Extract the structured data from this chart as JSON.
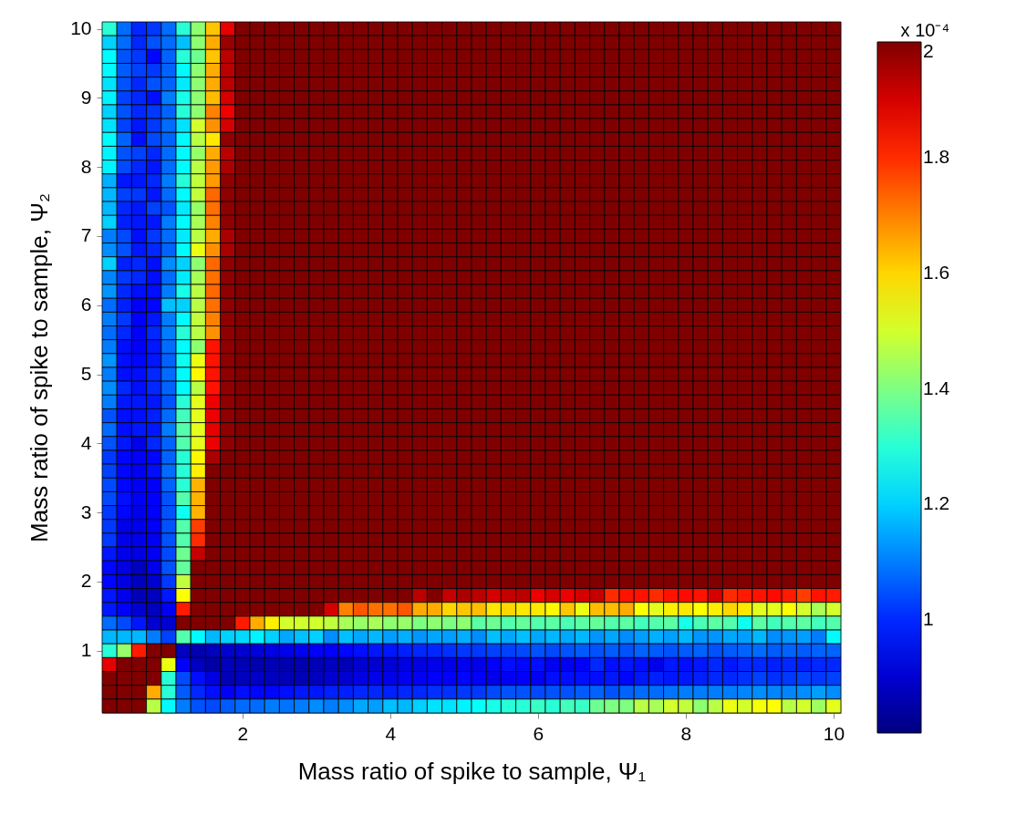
{
  "chart_data": {
    "type": "heatmap",
    "xlabel": "Mass ratio of spike to sample, Ψ₁",
    "ylabel": "Mass ratio of spike to sample, Ψ₂",
    "clabel": "x 10⁻⁴",
    "x": [
      0.2,
      0.4,
      0.6,
      0.8,
      1.0,
      1.2,
      1.4,
      1.6,
      1.8,
      2.0,
      2.2,
      2.4,
      2.6,
      2.8,
      3.0,
      3.2,
      3.4,
      3.6,
      3.8,
      4.0,
      4.2,
      4.4,
      4.6,
      4.8,
      5.0,
      5.2,
      5.4,
      5.6,
      5.8,
      6.0,
      6.2,
      6.4,
      6.6,
      6.8,
      7.0,
      7.2,
      7.4,
      7.6,
      7.8,
      8.0,
      8.2,
      8.4,
      8.6,
      8.8,
      9.0,
      9.2,
      9.4,
      9.6,
      9.8,
      10.0
    ],
    "y": [
      10.0,
      9.8,
      9.6,
      9.4,
      9.2,
      9.0,
      8.8,
      8.6,
      8.4,
      8.2,
      8.0,
      7.8,
      7.6,
      7.4,
      7.2,
      7.0,
      6.8,
      6.6,
      6.4,
      6.2,
      6.0,
      5.8,
      5.6,
      5.4,
      5.2,
      5.0,
      4.8,
      4.6,
      4.4,
      4.2,
      4.0,
      3.8,
      3.6,
      3.4,
      3.2,
      3.0,
      2.8,
      2.6,
      2.4,
      2.2,
      2.0,
      1.8,
      1.6,
      1.4,
      1.2,
      1.0,
      0.8,
      0.6,
      0.4,
      0.2
    ],
    "xlim": [
      0.1,
      10.1
    ],
    "xticks": [
      2,
      4,
      6,
      8,
      10
    ],
    "ylim": [
      0.1,
      10.1
    ],
    "yticks": [
      1,
      2,
      3,
      4,
      5,
      6,
      7,
      8,
      9,
      10
    ],
    "clim": [
      0.805,
      2
    ],
    "cticks": [
      1,
      1.2,
      1.4,
      1.6,
      1.8,
      2
    ],
    "cells": [
      [
        1.3,
        1.08,
        1,
        1.02,
        1.08,
        1.3,
        1.42,
        1.62,
        1.88,
        2,
        2,
        2,
        2,
        2,
        2,
        2,
        2,
        2,
        2,
        2,
        2,
        2,
        2,
        2,
        2,
        2,
        2,
        2,
        2,
        2,
        2,
        2,
        2,
        2,
        2,
        2,
        2,
        2,
        2,
        2,
        2,
        2,
        2,
        2,
        2,
        2,
        2,
        2,
        2,
        2
      ],
      [
        1.2,
        1.08,
        1,
        1.05,
        1.08,
        1.18,
        1.42,
        1.65,
        1.97,
        2,
        2,
        2,
        2,
        2,
        2,
        2,
        2,
        2,
        2,
        2,
        2,
        2,
        2,
        2,
        2,
        2,
        2,
        2,
        2,
        2,
        2,
        2,
        2,
        2,
        2,
        2,
        2,
        2,
        2,
        2,
        2,
        2,
        2,
        2,
        2,
        2,
        2,
        2,
        2,
        2
      ],
      [
        1.25,
        1.05,
        1.02,
        0.96,
        1.07,
        1.3,
        1.38,
        1.62,
        1.93,
        2,
        2,
        2,
        2,
        2,
        2,
        2,
        2,
        2,
        2,
        2,
        2,
        2,
        2,
        2,
        2,
        2,
        2,
        2,
        2,
        2,
        2,
        2,
        2,
        2,
        2,
        2,
        2,
        2,
        2,
        2,
        2,
        2,
        2,
        2,
        2,
        2,
        2,
        2,
        2,
        2
      ],
      [
        1.25,
        1.06,
        1.03,
        1.02,
        1.07,
        1.25,
        1.42,
        1.65,
        1.93,
        2,
        2,
        2,
        2,
        2,
        2,
        2,
        2,
        2,
        2,
        2,
        2,
        2,
        2,
        2,
        2,
        2,
        2,
        2,
        2,
        2,
        2,
        2,
        2,
        2,
        2,
        2,
        2,
        2,
        2,
        2,
        2,
        2,
        2,
        2,
        2,
        2,
        2,
        2,
        2,
        2
      ],
      [
        1.22,
        1.05,
        1,
        1.05,
        1.07,
        1.23,
        1.42,
        1.65,
        1.93,
        2,
        2,
        2,
        2,
        2,
        2,
        2,
        2,
        2,
        2,
        2,
        2,
        2,
        2,
        2,
        2,
        2,
        2,
        2,
        2,
        2,
        2,
        2,
        2,
        2,
        2,
        2,
        2,
        2,
        2,
        2,
        2,
        2,
        2,
        2,
        2,
        2,
        2,
        2,
        2,
        2
      ],
      [
        1.24,
        1.03,
        1,
        0.97,
        1.1,
        1.28,
        1.42,
        1.63,
        1.9,
        2,
        2,
        2,
        2,
        2,
        2,
        2,
        2,
        2,
        2,
        2,
        2,
        2,
        2,
        2,
        2,
        2,
        2,
        2,
        2,
        2,
        2,
        2,
        2,
        2,
        2,
        2,
        2,
        2,
        2,
        2,
        2,
        2,
        2,
        2,
        2,
        2,
        2,
        2,
        2,
        2
      ],
      [
        1.2,
        1.05,
        1,
        1.02,
        1.07,
        1.3,
        1.42,
        1.7,
        1.87,
        2,
        2,
        2,
        2,
        2,
        2,
        2,
        2,
        2,
        2,
        2,
        2,
        2,
        2,
        2,
        2,
        2,
        2,
        2,
        2,
        2,
        2,
        2,
        2,
        2,
        2,
        2,
        2,
        2,
        2,
        2,
        2,
        2,
        2,
        2,
        2,
        2,
        2,
        2,
        2,
        2
      ],
      [
        1.22,
        1.03,
        0.98,
        1.02,
        1.08,
        1.22,
        1.5,
        1.68,
        1.9,
        2,
        2,
        2,
        2,
        2,
        2,
        2,
        2,
        2,
        2,
        2,
        2,
        2,
        2,
        2,
        2,
        2,
        2,
        2,
        2,
        2,
        2,
        2,
        2,
        2,
        2,
        2,
        2,
        2,
        2,
        2,
        2,
        2,
        2,
        2,
        2,
        2,
        2,
        2,
        2,
        2
      ],
      [
        1.25,
        1.07,
        0.97,
        1.04,
        1.07,
        1.25,
        1.47,
        1.58,
        1.98,
        2,
        2,
        2,
        2,
        2,
        2,
        2,
        2,
        2,
        2,
        2,
        2,
        2,
        2,
        2,
        2,
        2,
        2,
        2,
        2,
        2,
        2,
        2,
        2,
        2,
        2,
        2,
        2,
        2,
        2,
        2,
        2,
        2,
        2,
        2,
        2,
        2,
        2,
        2,
        2,
        2
      ],
      [
        1.24,
        1.05,
        1.03,
        1,
        1.08,
        1.25,
        1.43,
        1.65,
        1.93,
        2,
        2,
        2,
        2,
        2,
        2,
        2,
        2,
        2,
        2,
        2,
        2,
        2,
        2,
        2,
        2,
        2,
        2,
        2,
        2,
        2,
        2,
        2,
        2,
        2,
        2,
        2,
        2,
        2,
        2,
        2,
        2,
        2,
        2,
        2,
        2,
        2,
        2,
        2,
        2,
        2
      ],
      [
        1.24,
        1.04,
        1,
        0.98,
        1.08,
        1.25,
        1.47,
        1.67,
        1.95,
        2,
        2,
        2,
        2,
        2,
        2,
        2,
        2,
        2,
        2,
        2,
        2,
        2,
        2,
        2,
        2,
        2,
        2,
        2,
        2,
        2,
        2,
        2,
        2,
        2,
        2,
        2,
        2,
        2,
        2,
        2,
        2,
        2,
        2,
        2,
        2,
        2,
        2,
        2,
        2,
        2
      ],
      [
        1.16,
        0.98,
        0.98,
        1,
        1.1,
        1.3,
        1.48,
        1.67,
        1.98,
        2,
        2,
        2,
        2,
        2,
        2,
        2,
        2,
        2,
        2,
        2,
        2,
        2,
        2,
        2,
        2,
        2,
        2,
        2,
        2,
        2,
        2,
        2,
        2,
        2,
        2,
        2,
        2,
        2,
        2,
        2,
        2,
        2,
        2,
        2,
        2,
        2,
        2,
        2,
        2,
        2
      ],
      [
        1.17,
        1.03,
        1.02,
        0.98,
        1.08,
        1.25,
        1.48,
        1.73,
        1.98,
        2,
        2,
        2,
        2,
        2,
        2,
        2,
        2,
        2,
        2,
        2,
        2,
        2,
        2,
        2,
        2,
        2,
        2,
        2,
        2,
        2,
        2,
        2,
        2,
        2,
        2,
        2,
        2,
        2,
        2,
        2,
        2,
        2,
        2,
        2,
        2,
        2,
        2,
        2,
        2,
        2
      ],
      [
        1.17,
        1,
        0.98,
        1.03,
        1.05,
        1.23,
        1.43,
        1.72,
        1.98,
        2,
        2,
        2,
        2,
        2,
        2,
        2,
        2,
        2,
        2,
        2,
        2,
        2,
        2,
        2,
        2,
        2,
        2,
        2,
        2,
        2,
        2,
        2,
        2,
        2,
        2,
        2,
        2,
        2,
        2,
        2,
        2,
        2,
        2,
        2,
        2,
        2,
        2,
        2,
        2,
        2
      ],
      [
        1.2,
        0.99,
        0.98,
        0.98,
        1.1,
        1.25,
        1.45,
        1.7,
        1.98,
        2,
        2,
        2,
        2,
        2,
        2,
        2,
        2,
        2,
        2,
        2,
        2,
        2,
        2,
        2,
        2,
        2,
        2,
        2,
        2,
        2,
        2,
        2,
        2,
        2,
        2,
        2,
        2,
        2,
        2,
        2,
        2,
        2,
        2,
        2,
        2,
        2,
        2,
        2,
        2,
        2
      ],
      [
        1.1,
        1.04,
        0.97,
        1.02,
        1.08,
        1.23,
        1.47,
        1.65,
        1.95,
        2,
        2,
        2,
        2,
        2,
        2,
        2,
        2,
        2,
        2,
        2,
        2,
        2,
        2,
        2,
        2,
        2,
        2,
        2,
        2,
        2,
        2,
        2,
        2,
        2,
        2,
        2,
        2,
        2,
        2,
        2,
        2,
        2,
        2,
        2,
        2,
        2,
        2,
        2,
        2,
        2
      ],
      [
        1.12,
        1.05,
        0.98,
        1,
        1.07,
        1.25,
        1.53,
        1.68,
        1.95,
        2,
        2,
        2,
        2,
        2,
        2,
        2,
        2,
        2,
        2,
        2,
        2,
        2,
        2,
        2,
        2,
        2,
        2,
        2,
        2,
        2,
        2,
        2,
        2,
        2,
        2,
        2,
        2,
        2,
        2,
        2,
        2,
        2,
        2,
        2,
        2,
        2,
        2,
        2,
        2,
        2
      ],
      [
        1.2,
        0.99,
        1,
        0.97,
        1.12,
        1.2,
        1.42,
        1.73,
        1.98,
        2,
        2,
        2,
        2,
        2,
        2,
        2,
        2,
        2,
        2,
        2,
        2,
        2,
        2,
        2,
        2,
        2,
        2,
        2,
        2,
        2,
        2,
        2,
        2,
        2,
        2,
        2,
        2,
        2,
        2,
        2,
        2,
        2,
        2,
        2,
        2,
        2,
        2,
        2,
        2,
        2
      ],
      [
        1.11,
        1.02,
        1,
        0.97,
        1.08,
        1.23,
        1.45,
        1.72,
        1.98,
        2,
        2,
        2,
        2,
        2,
        2,
        2,
        2,
        2,
        2,
        2,
        2,
        2,
        2,
        2,
        2,
        2,
        2,
        2,
        2,
        2,
        2,
        2,
        2,
        2,
        2,
        2,
        2,
        2,
        2,
        2,
        2,
        2,
        2,
        2,
        2,
        2,
        2,
        2,
        2,
        2
      ],
      [
        1.13,
        1,
        0.97,
        0.97,
        1.1,
        1.28,
        1.47,
        1.73,
        1.98,
        2,
        2,
        2,
        2,
        2,
        2,
        2,
        2,
        2,
        2,
        2,
        2,
        2,
        2,
        2,
        2,
        2,
        2,
        2,
        2,
        2,
        2,
        2,
        2,
        2,
        2,
        2,
        2,
        2,
        2,
        2,
        2,
        2,
        2,
        2,
        2,
        2,
        2,
        2,
        2,
        2
      ],
      [
        1.08,
        0.99,
        0.95,
        0.96,
        1.18,
        1.2,
        1.47,
        1.72,
        1.98,
        2,
        2,
        2,
        2,
        2,
        2,
        2,
        2,
        2,
        2,
        2,
        2,
        2,
        2,
        2,
        2,
        2,
        2,
        2,
        2,
        2,
        2,
        2,
        2,
        2,
        2,
        2,
        2,
        2,
        2,
        2,
        2,
        2,
        2,
        2,
        2,
        2,
        2,
        2,
        2,
        2
      ],
      [
        1.1,
        1.02,
        0.95,
        0.98,
        1.1,
        1.25,
        1.48,
        1.7,
        1.98,
        2,
        2,
        2,
        2,
        2,
        2,
        2,
        2,
        2,
        2,
        2,
        2,
        2,
        2,
        2,
        2,
        2,
        2,
        2,
        2,
        2,
        2,
        2,
        2,
        2,
        2,
        2,
        2,
        2,
        2,
        2,
        2,
        2,
        2,
        2,
        2,
        2,
        2,
        2,
        2,
        2
      ],
      [
        1.08,
        1,
        0.95,
        1,
        1.1,
        1.3,
        1.47,
        1.68,
        1.98,
        2,
        2,
        2,
        2,
        2,
        2,
        2,
        2,
        2,
        2,
        2,
        2,
        2,
        2,
        2,
        2,
        2,
        2,
        2,
        2,
        2,
        2,
        2,
        2,
        2,
        2,
        2,
        2,
        2,
        2,
        2,
        2,
        2,
        2,
        2,
        2,
        2,
        2,
        2,
        2,
        2
      ],
      [
        1.1,
        0.97,
        0.95,
        0.98,
        1.08,
        1.25,
        1.42,
        1.83,
        1.98,
        2,
        2,
        2,
        2,
        2,
        2,
        2,
        2,
        2,
        2,
        2,
        2,
        2,
        2,
        2,
        2,
        2,
        2,
        2,
        2,
        2,
        2,
        2,
        2,
        2,
        2,
        2,
        2,
        2,
        2,
        2,
        2,
        2,
        2,
        2,
        2,
        2,
        2,
        2,
        2,
        2
      ],
      [
        1.13,
        0.97,
        0.96,
        0.98,
        1.07,
        1.27,
        1.53,
        1.83,
        1.98,
        2,
        2,
        2,
        2,
        2,
        2,
        2,
        2,
        2,
        2,
        2,
        2,
        2,
        2,
        2,
        2,
        2,
        2,
        2,
        2,
        2,
        2,
        2,
        2,
        2,
        2,
        2,
        2,
        2,
        2,
        2,
        2,
        2,
        2,
        2,
        2,
        2,
        2,
        2,
        2,
        2
      ],
      [
        1.1,
        0.97,
        0.97,
        1,
        1.08,
        1.25,
        1.56,
        1.83,
        1.98,
        2,
        2,
        2,
        2,
        2,
        2,
        2,
        2,
        2,
        2,
        2,
        2,
        2,
        2,
        2,
        2,
        2,
        2,
        2,
        2,
        2,
        2,
        2,
        2,
        2,
        2,
        2,
        2,
        2,
        2,
        2,
        2,
        2,
        2,
        2,
        2,
        2,
        2,
        2,
        2,
        2
      ],
      [
        1.12,
        1,
        0.97,
        1,
        1.07,
        1.25,
        1.47,
        1.83,
        1.98,
        2,
        2,
        2,
        2,
        2,
        2,
        2,
        2,
        2,
        2,
        2,
        2,
        2,
        2,
        2,
        2,
        2,
        2,
        2,
        2,
        2,
        2,
        2,
        2,
        2,
        2,
        2,
        2,
        2,
        2,
        2,
        2,
        2,
        2,
        2,
        2,
        2,
        2,
        2,
        2,
        2
      ],
      [
        1.1,
        0.98,
        0.98,
        0.98,
        1.05,
        1.3,
        1.52,
        1.87,
        1.98,
        2,
        2,
        2,
        2,
        2,
        2,
        2,
        2,
        2,
        2,
        2,
        2,
        2,
        2,
        2,
        2,
        2,
        2,
        2,
        2,
        2,
        2,
        2,
        2,
        2,
        2,
        2,
        2,
        2,
        2,
        2,
        2,
        2,
        2,
        2,
        2,
        2,
        2,
        2,
        2,
        2
      ],
      [
        1.05,
        0.97,
        0.97,
        0.99,
        1.08,
        1.33,
        1.52,
        1.87,
        1.98,
        2,
        2,
        2,
        2,
        2,
        2,
        2,
        2,
        2,
        2,
        2,
        2,
        2,
        2,
        2,
        2,
        2,
        2,
        2,
        2,
        2,
        2,
        2,
        2,
        2,
        2,
        2,
        2,
        2,
        2,
        2,
        2,
        2,
        2,
        2,
        2,
        2,
        2,
        2,
        2,
        2
      ],
      [
        1.08,
        0.97,
        0.98,
        0.98,
        1.1,
        1.35,
        1.52,
        1.88,
        1.98,
        2,
        2,
        2,
        2,
        2,
        2,
        2,
        2,
        2,
        2,
        2,
        2,
        2,
        2,
        2,
        2,
        2,
        2,
        2,
        2,
        2,
        2,
        2,
        2,
        2,
        2,
        2,
        2,
        2,
        2,
        2,
        2,
        2,
        2,
        2,
        2,
        2,
        2,
        2,
        2,
        2
      ],
      [
        1.05,
        0.98,
        0.93,
        1,
        1.07,
        1.35,
        1.52,
        1.87,
        1.98,
        2,
        2,
        2,
        2,
        2,
        2,
        2,
        2,
        2,
        2,
        2,
        2,
        2,
        2,
        2,
        2,
        2,
        2,
        2,
        2,
        2,
        2,
        2,
        2,
        2,
        2,
        2,
        2,
        2,
        2,
        2,
        2,
        2,
        2,
        2,
        2,
        2,
        2,
        2,
        2,
        2
      ],
      [
        1.02,
        0.96,
        0.95,
        0.96,
        1.07,
        1.3,
        1.56,
        1.95,
        2,
        2,
        2,
        2,
        2,
        2,
        2,
        2,
        2,
        2,
        2,
        2,
        2,
        2,
        2,
        2,
        2,
        2,
        2,
        2,
        2,
        2,
        2,
        2,
        2,
        2,
        2,
        2,
        2,
        2,
        2,
        2,
        2,
        2,
        2,
        2,
        2,
        2,
        2,
        2,
        2,
        2
      ],
      [
        1.03,
        0.96,
        0.94,
        0.97,
        1.08,
        1.3,
        1.57,
        2,
        2,
        2,
        2,
        2,
        2,
        2,
        2,
        2,
        2,
        2,
        2,
        2,
        2,
        2,
        2,
        2,
        2,
        2,
        2,
        2,
        2,
        2,
        2,
        2,
        2,
        2,
        2,
        2,
        2,
        2,
        2,
        2,
        2,
        2,
        2,
        2,
        2,
        2,
        2,
        2,
        2,
        2
      ],
      [
        1.04,
        0.96,
        0.94,
        0.95,
        1.07,
        1.3,
        1.64,
        2,
        2,
        2,
        2,
        2,
        2,
        2,
        2,
        2,
        2,
        2,
        2,
        2,
        2,
        2,
        2,
        2,
        2,
        2,
        2,
        2,
        2,
        2,
        2,
        2,
        2,
        2,
        2,
        2,
        2,
        2,
        2,
        2,
        2,
        2,
        2,
        2,
        2,
        2,
        2,
        2,
        2,
        2
      ],
      [
        1.04,
        0.97,
        0.94,
        0.95,
        1.05,
        1.35,
        1.64,
        2,
        2,
        2,
        2,
        2,
        2,
        2,
        2,
        2,
        2,
        2,
        2,
        2,
        2,
        2,
        2,
        2,
        2,
        2,
        2,
        2,
        2,
        2,
        2,
        2,
        2,
        2,
        2,
        2,
        2,
        2,
        2,
        2,
        2,
        2,
        2,
        2,
        2,
        2,
        2,
        2,
        2,
        2
      ],
      [
        1.02,
        0.96,
        0.93,
        0.95,
        1.05,
        1.27,
        1.64,
        2,
        2,
        2,
        2,
        2,
        2,
        2,
        2,
        2,
        2,
        2,
        2,
        2,
        2,
        2,
        2,
        2,
        2,
        2,
        2,
        2,
        2,
        2,
        2,
        2,
        2,
        2,
        2,
        2,
        2,
        2,
        2,
        2,
        2,
        2,
        2,
        2,
        2,
        2,
        2,
        2,
        2,
        2
      ],
      [
        1.02,
        0.93,
        0.93,
        0.95,
        1.05,
        1.35,
        1.78,
        2,
        2,
        2,
        2,
        2,
        2,
        2,
        2,
        2,
        2,
        2,
        2,
        2,
        2,
        2,
        2,
        2,
        2,
        2,
        2,
        2,
        2,
        2,
        2,
        2,
        2,
        2,
        2,
        2,
        2,
        2,
        2,
        2,
        2,
        2,
        2,
        2,
        2,
        2,
        2,
        2,
        2,
        2
      ],
      [
        1.02,
        0.93,
        0.93,
        0.94,
        1.05,
        1.35,
        1.8,
        2,
        2,
        2,
        2,
        2,
        2,
        2,
        2,
        2,
        2,
        2,
        2,
        2,
        2,
        2,
        2,
        2,
        2,
        2,
        2,
        2,
        2,
        2,
        2,
        2,
        2,
        2,
        2,
        2,
        2,
        2,
        2,
        2,
        2,
        2,
        2,
        2,
        2,
        2,
        2,
        2,
        2,
        2
      ],
      [
        0.98,
        0.93,
        0.92,
        0.94,
        1.04,
        1.38,
        1.92,
        2,
        2,
        2,
        2,
        2,
        2,
        2,
        2,
        2,
        2,
        2,
        2,
        2,
        2,
        2,
        2,
        2,
        2,
        2,
        2,
        2,
        2,
        2,
        2,
        2,
        2,
        2,
        2,
        2,
        2,
        2,
        2,
        2,
        2,
        2,
        2,
        2,
        2,
        2,
        2,
        2,
        2,
        2
      ],
      [
        0.96,
        0.92,
        0.88,
        0.93,
        1.05,
        1.37,
        2,
        2,
        2,
        2,
        2,
        2,
        2,
        2,
        2,
        2,
        2,
        2,
        2,
        2,
        2,
        2,
        2,
        2,
        2,
        2,
        2,
        2,
        2,
        2,
        2,
        2,
        2,
        2,
        2,
        2,
        2,
        2,
        2,
        2,
        2,
        2,
        2,
        2,
        2,
        2,
        2,
        2,
        2,
        2
      ],
      [
        0.96,
        0.92,
        0.88,
        0.9,
        1.02,
        1.48,
        2,
        2,
        2,
        2,
        2,
        2,
        2,
        2,
        2,
        2,
        2,
        2,
        2,
        2,
        2,
        2,
        2,
        2,
        2,
        2,
        2,
        2,
        2,
        2,
        2,
        2,
        2,
        2,
        2,
        2,
        2,
        2,
        2,
        2,
        2,
        2,
        2,
        2,
        2,
        2,
        2,
        2,
        2,
        2
      ],
      [
        0.98,
        0.93,
        0.87,
        0.88,
        0.98,
        1.55,
        2,
        2,
        2,
        2,
        2,
        2,
        2,
        2,
        2,
        2,
        2,
        2,
        2,
        2,
        2,
        1.93,
        2,
        1.92,
        1.95,
        1.93,
        1.9,
        1.92,
        1.93,
        1.87,
        1.9,
        1.87,
        1.9,
        1.92,
        1.8,
        1.83,
        1.83,
        1.8,
        1.83,
        1.84,
        1.83,
        1.9,
        1.8,
        1.82,
        1.83,
        1.84,
        1.82,
        1.78,
        1.83,
        1.82
      ],
      [
        0.98,
        0.95,
        0.9,
        0.88,
        0.94,
        1.82,
        2,
        2,
        2,
        2,
        2,
        2,
        2,
        2,
        2,
        1.9,
        1.7,
        1.75,
        1.72,
        1.72,
        1.75,
        1.65,
        1.65,
        1.6,
        1.62,
        1.63,
        1.58,
        1.6,
        1.58,
        1.58,
        1.56,
        1.62,
        1.53,
        1.63,
        1.63,
        1.65,
        1.55,
        1.52,
        1.57,
        1.58,
        1.55,
        1.57,
        1.6,
        1.58,
        1.52,
        1.52,
        1.55,
        1.5,
        1.45,
        1.5
      ],
      [
        1.08,
        1.04,
        0.98,
        0.9,
        0.9,
        2,
        2,
        2,
        2,
        1.82,
        1.65,
        1.57,
        1.5,
        1.5,
        1.5,
        1.48,
        1.45,
        1.43,
        1.45,
        1.42,
        1.43,
        1.4,
        1.42,
        1.4,
        1.42,
        1.36,
        1.38,
        1.35,
        1.37,
        1.35,
        1.36,
        1.34,
        1.36,
        1.37,
        1.35,
        1.36,
        1.33,
        1.35,
        1.36,
        1.28,
        1.34,
        1.36,
        1.35,
        1.27,
        1.36,
        1.33,
        1.35,
        1.36,
        1.33,
        1.35
      ],
      [
        1.17,
        1.17,
        1.17,
        1.1,
        1.03,
        1.35,
        1.25,
        1.17,
        1.2,
        1.21,
        1.24,
        1.2,
        1.15,
        1.18,
        1.2,
        1.12,
        1.18,
        1.15,
        1.17,
        1.14,
        1.16,
        1.13,
        1.15,
        1.14,
        1.16,
        1.12,
        1.18,
        1.15,
        1.18,
        1.15,
        1.17,
        1.15,
        1.17,
        1.13,
        1.15,
        1.12,
        1.14,
        1.16,
        1.14,
        1.17,
        1.13,
        1.13,
        1.15,
        1.14,
        1.17,
        1.12,
        1.13,
        1.14,
        1.1,
        1.25
      ],
      [
        1.3,
        1.43,
        1.82,
        2,
        2,
        0.88,
        0.86,
        0.88,
        0.9,
        0.9,
        0.91,
        0.92,
        0.93,
        0.94,
        0.95,
        0.95,
        0.96,
        0.97,
        0.98,
        0.98,
        0.99,
        1,
        1,
        1.01,
        1.02,
        1.02,
        1.03,
        1.03,
        1.04,
        1.05,
        1.04,
        1.05,
        1.06,
        1.05,
        1.06,
        1.05,
        1.07,
        1.06,
        1.05,
        1.06,
        1.07,
        1.05,
        1.06,
        1.07,
        1.08,
        1.06,
        1.07,
        1.06,
        1.07,
        1.07
      ],
      [
        1.88,
        2,
        2,
        2,
        1.53,
        0.95,
        0.88,
        0.85,
        0.88,
        0.87,
        0.86,
        0.87,
        0.86,
        0.86,
        0.87,
        0.88,
        0.87,
        0.9,
        0.9,
        0.91,
        0.92,
        0.92,
        0.93,
        0.93,
        0.94,
        0.93,
        0.95,
        0.97,
        0.96,
        0.97,
        0.94,
        0.94,
        0.95,
        1,
        0.97,
        0.98,
        0.97,
        0.93,
        0.98,
        0.97,
        0.98,
        1,
        0.98,
        1,
        1,
        0.99,
        1,
        0.99,
        1,
        1
      ],
      [
        2,
        2,
        2,
        2,
        1.3,
        1.04,
        0.97,
        0.92,
        0.87,
        0.88,
        0.89,
        0.88,
        0.87,
        0.87,
        0.88,
        0.9,
        0.9,
        0.92,
        0.93,
        0.93,
        0.94,
        0.94,
        0.95,
        0.95,
        0.96,
        0.95,
        0.93,
        0.94,
        0.95,
        0.94,
        0.97,
        0.97,
        0.97,
        0.97,
        0.98,
        0.96,
        0.98,
        0.99,
        0.98,
        0.98,
        0.99,
        1,
        1,
        1.01,
        1.03,
        1.01,
        1.02,
        1.03,
        1.02,
        1.03
      ],
      [
        2,
        2,
        2,
        1.65,
        1.3,
        1.06,
        1,
        0.97,
        0.95,
        0.97,
        0.96,
        0.96,
        0.97,
        0.98,
        0.98,
        0.99,
        0.99,
        1,
        1,
        0.99,
        1,
        1,
        1.01,
        1.01,
        1.02,
        1.02,
        1.04,
        1.05,
        1.05,
        1.04,
        1.05,
        1.05,
        1.06,
        1.07,
        1.05,
        1.07,
        1.08,
        1.08,
        1.09,
        1.1,
        1.1,
        1.1,
        1.1,
        1.11,
        1.12,
        1.11,
        1.11,
        1.12,
        1.14,
        1.12
      ],
      [
        2,
        2,
        2,
        1.47,
        1.25,
        1.1,
        1.05,
        1.04,
        1.06,
        1.08,
        1.08,
        1.1,
        1.09,
        1.1,
        1.12,
        1.1,
        1.12,
        1.15,
        1.14,
        1.18,
        1.17,
        1.2,
        1.22,
        1.22,
        1.24,
        1.26,
        1.28,
        1.3,
        1.3,
        1.32,
        1.3,
        1.33,
        1.32,
        1.38,
        1.4,
        1.4,
        1.47,
        1.45,
        1.5,
        1.48,
        1.42,
        1.47,
        1.53,
        1.5,
        1.54,
        1.55,
        1.47,
        1.5,
        1.44,
        1.52
      ]
    ]
  }
}
